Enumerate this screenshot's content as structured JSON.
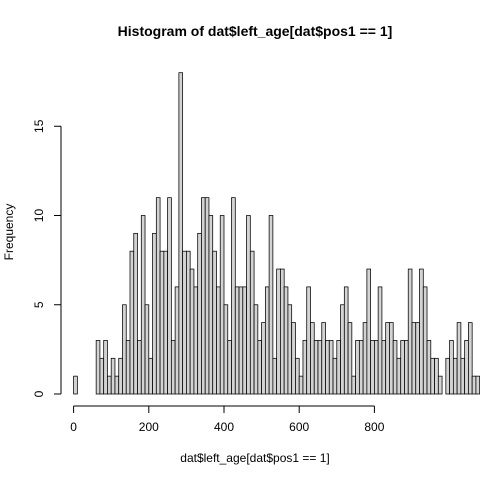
{
  "chart_data": {
    "type": "bar",
    "title": "Histogram of dat$left_age[dat$pos1 == 1]",
    "xlabel": "dat$left_age[dat$pos1 == 1]",
    "ylabel": "Frequency",
    "bin_width": 10,
    "bin_start": 0,
    "xlim": [
      0,
      960
    ],
    "ylim": [
      0,
      18
    ],
    "xticks": [
      0,
      200,
      400,
      600,
      800
    ],
    "yticks": [
      0,
      5,
      10,
      15
    ],
    "grid": false,
    "bar_fill": "#d3d3d3",
    "bar_stroke": "#000000",
    "values": [
      1,
      0,
      0,
      0,
      0,
      0,
      3,
      2,
      3,
      1,
      2,
      1,
      2,
      5,
      3,
      8,
      9,
      3,
      10,
      5,
      2,
      9,
      11,
      8,
      8,
      11,
      3,
      6,
      18,
      8,
      8,
      7,
      6,
      9,
      11,
      11,
      10,
      8,
      6,
      10,
      5,
      3,
      11,
      6,
      6,
      6,
      10,
      8,
      5,
      3,
      4,
      6,
      10,
      2,
      7,
      7,
      6,
      5,
      4,
      2,
      1,
      3,
      6,
      4,
      3,
      3,
      4,
      3,
      3,
      2,
      3,
      5,
      6,
      4,
      1,
      3,
      3,
      4,
      7,
      3,
      3,
      6,
      3,
      4,
      4,
      3,
      2,
      3,
      3,
      7,
      4,
      4,
      7,
      6,
      3,
      2,
      2,
      1,
      0,
      2,
      3,
      2,
      4,
      2,
      3,
      4,
      1,
      1
    ],
    "note_values_source": "estimated from bar heights"
  }
}
